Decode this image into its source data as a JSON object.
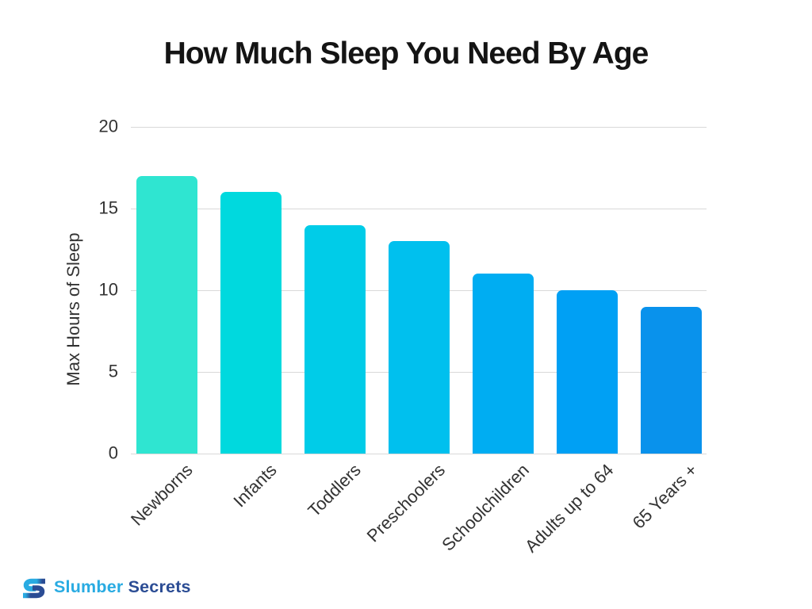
{
  "title": "How Much Sleep You Need By Age",
  "chart_data": {
    "type": "bar",
    "categories": [
      "Newborns",
      "Infants",
      "Toddlers",
      "Preschoolers",
      "Schoolchildren",
      "Adults up to 64",
      "65 Years +"
    ],
    "values": [
      17,
      16,
      14,
      13,
      11,
      10,
      9
    ],
    "bar_colors": [
      "#2FE5D1",
      "#00D9DE",
      "#00CCE8",
      "#00C0EE",
      "#00ADF2",
      "#00A0F4",
      "#0992EC"
    ],
    "title": "How Much Sleep You Need By Age",
    "xlabel": "",
    "ylabel": "Max Hours of Sleep",
    "yticks": [
      0,
      5,
      10,
      15,
      20
    ],
    "ylim": [
      0,
      20
    ],
    "grid": true,
    "grid_color": "#d9d9d9",
    "axis_text_color": "#333333",
    "title_color": "#141414",
    "legend": "none"
  },
  "branding": {
    "logo_part1": "Slumber",
    "logo_part2": "Secrets",
    "part1_color": "#29ABE2",
    "part2_color": "#2B4C94"
  }
}
